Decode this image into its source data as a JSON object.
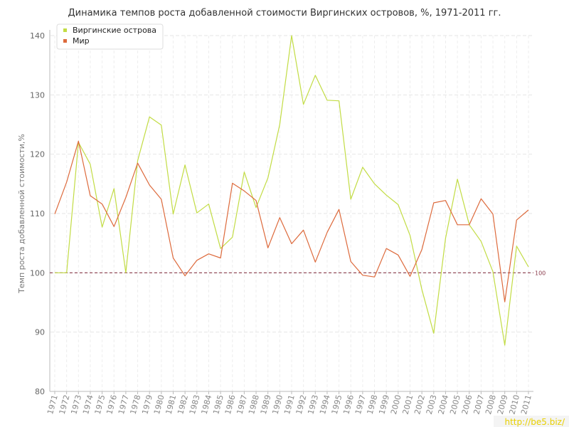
{
  "chart_data": {
    "type": "line",
    "title": "Динамика темпов роста добавленной стоимости Виргинских островов, %, 1971-2011 гг.",
    "xlabel": "",
    "ylabel": "Темп роста добавленной стоимости,%",
    "ylim": [
      80,
      140
    ],
    "yticks": [
      80,
      90,
      100,
      110,
      120,
      130,
      140
    ],
    "grid": true,
    "legend_position": "top-left",
    "categories": [
      "1971",
      "1972",
      "1973",
      "1974",
      "1975",
      "1976",
      "1977",
      "1978",
      "1979",
      "1980",
      "1981",
      "1982",
      "1983",
      "1984",
      "1985",
      "1986",
      "1987",
      "1988",
      "1989",
      "1990",
      "1991",
      "1992",
      "1993",
      "1994",
      "1995",
      "1996",
      "1997",
      "1998",
      "1999",
      "2000",
      "2001",
      "2002",
      "2003",
      "2004",
      "2005",
      "2006",
      "2007",
      "2008",
      "2009",
      "2010",
      "2011"
    ],
    "series": [
      {
        "name": "Виргинские острова",
        "color": "#c2dc44",
        "values": [
          100,
          100,
          122,
          118.3,
          107.7,
          114.2,
          100,
          118.9,
          126.3,
          124.9,
          109.9,
          118.2,
          110.1,
          111.6,
          104.1,
          106,
          117,
          111,
          116,
          125,
          140,
          128.4,
          133.3,
          129.1,
          129,
          112.4,
          117.8,
          115,
          113.1,
          111.5,
          106.3,
          97.2,
          89.8,
          105.8,
          115.8,
          108.1,
          105.3,
          100.2,
          87.8,
          104.5,
          101
        ]
      },
      {
        "name": "Мир",
        "color": "#dd6a3c",
        "values": [
          109.9,
          115.3,
          122.2,
          113,
          111.6,
          107.8,
          112.7,
          118.5,
          114.8,
          112.4,
          102.5,
          99.5,
          102.1,
          103.2,
          102.5,
          115.1,
          113.8,
          112.2,
          104.2,
          109.3,
          104.9,
          107.2,
          101.8,
          106.8,
          110.7,
          101.9,
          99.6,
          99.3,
          104.1,
          103,
          99.4,
          103.9,
          111.8,
          112.2,
          108.1,
          108.1,
          112.5,
          109.9,
          95.1,
          108.9,
          110.6
        ]
      }
    ],
    "reference_line": {
      "value": 100,
      "label": "100",
      "color": "#8a3b4b"
    }
  },
  "watermark": "http://be5.biz/"
}
